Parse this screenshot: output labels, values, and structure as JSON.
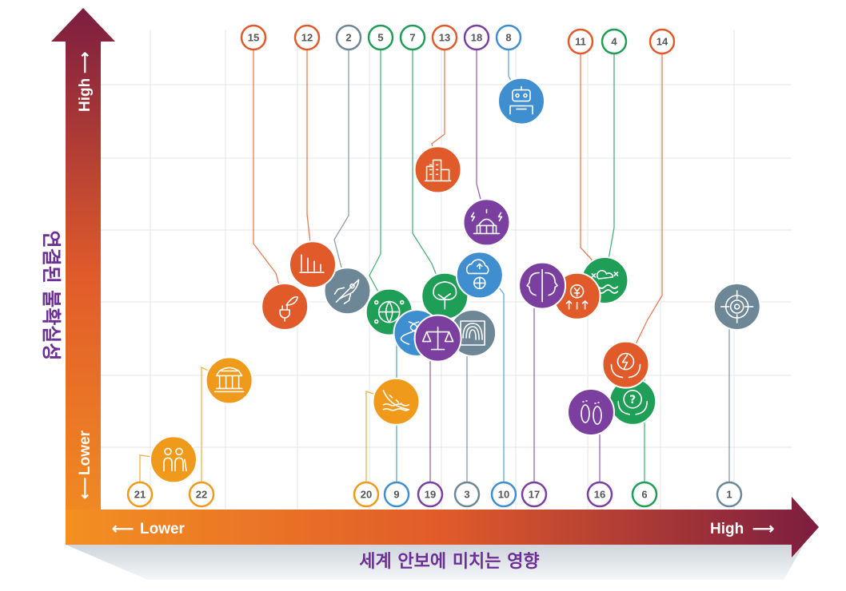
{
  "colors": {
    "orange": "#ef9a1b",
    "red": "#e15b2a",
    "green": "#1e9e56",
    "blue": "#3f8fd0",
    "purple": "#7b3fa0",
    "gray": "#6e8796",
    "axis_dark": "#7c1d40",
    "axis_light": "#f39021",
    "title_purple": "#6b2f96"
  },
  "chart_data": {
    "type": "scatter",
    "xlabel": "세계 안보에 미치는 영향",
    "ylabel": "연결된 불확실성",
    "x_axis": {
      "low_label": "Lower",
      "high_label": "High"
    },
    "y_axis": {
      "low_label": "Lower",
      "high_label": "High"
    },
    "points": [
      {
        "id": "1",
        "x": 9.1,
        "y": 4.0,
        "color": "gray",
        "icon": "target-icon"
      },
      {
        "id": "2",
        "x": 3.5,
        "y": 4.3,
        "color": "gray",
        "icon": "rocket-icon"
      },
      {
        "id": "3",
        "x": 5.3,
        "y": 3.5,
        "color": "gray",
        "icon": "fingerprint-icon"
      },
      {
        "id": "4",
        "x": 7.2,
        "y": 4.5,
        "color": "green",
        "icon": "extreme-weather-icon"
      },
      {
        "id": "5",
        "x": 4.1,
        "y": 3.9,
        "color": "green",
        "icon": "globe-network-icon"
      },
      {
        "id": "6",
        "x": 7.6,
        "y": 2.2,
        "color": "green",
        "icon": "question-hands-icon"
      },
      {
        "id": "7",
        "x": 4.9,
        "y": 4.2,
        "color": "green",
        "icon": "tree-icon"
      },
      {
        "id": "8",
        "x": 6.0,
        "y": 7.9,
        "color": "blue",
        "icon": "robot-icon"
      },
      {
        "id": "9",
        "x": 4.5,
        "y": 3.5,
        "color": "blue",
        "icon": "dna-research-icon"
      },
      {
        "id": "10",
        "x": 5.4,
        "y": 4.6,
        "color": "blue",
        "icon": "cloud-network-icon"
      },
      {
        "id": "11",
        "x": 6.8,
        "y": 4.2,
        "color": "red",
        "icon": "currency-decline-icon"
      },
      {
        "id": "12",
        "x": 3.0,
        "y": 4.8,
        "color": "red",
        "icon": "bar-decline-icon"
      },
      {
        "id": "13",
        "x": 4.8,
        "y": 6.6,
        "color": "red",
        "icon": "city-buildings-icon"
      },
      {
        "id": "14",
        "x": 7.5,
        "y": 2.9,
        "color": "red",
        "icon": "energy-hands-icon"
      },
      {
        "id": "15",
        "x": 2.6,
        "y": 4.0,
        "color": "red",
        "icon": "plant-plug-icon"
      },
      {
        "id": "16",
        "x": 7.0,
        "y": 2.0,
        "color": "purple",
        "icon": "footprints-icon"
      },
      {
        "id": "17",
        "x": 6.3,
        "y": 4.4,
        "color": "purple",
        "icon": "faces-divided-icon"
      },
      {
        "id": "18",
        "x": 5.5,
        "y": 5.6,
        "color": "purple",
        "icon": "capitol-lightning-icon"
      },
      {
        "id": "19",
        "x": 4.8,
        "y": 3.4,
        "color": "purple",
        "icon": "scales-icon"
      },
      {
        "id": "20",
        "x": 4.2,
        "y": 2.2,
        "color": "orange",
        "icon": "landslide-icon"
      },
      {
        "id": "21",
        "x": 1.0,
        "y": 1.1,
        "color": "orange",
        "icon": "elderly-people-icon"
      },
      {
        "id": "22",
        "x": 1.8,
        "y": 2.6,
        "color": "orange",
        "icon": "temple-icon"
      }
    ]
  }
}
